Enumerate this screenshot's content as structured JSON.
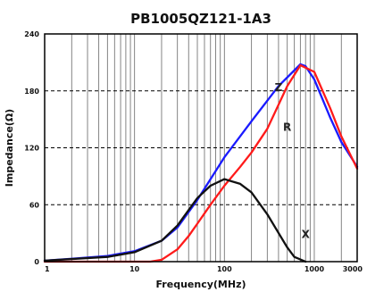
{
  "chart_data": {
    "type": "line",
    "title": "PB1005QZ121-1A3",
    "xlabel": "Frequency(MHz)",
    "ylabel": "Impedance(Ω)",
    "x_scale": "log",
    "xlim": [
      1,
      3000
    ],
    "ylim": [
      0,
      240
    ],
    "x_ticks": [
      1,
      10,
      100,
      1000,
      3000
    ],
    "x_tick_labels": [
      "1",
      "10",
      "100",
      "1000",
      "3000"
    ],
    "y_ticks": [
      0,
      60,
      120,
      180,
      240
    ],
    "y_tick_labels": [
      "0",
      "60",
      "120",
      "180",
      "240"
    ],
    "grid": {
      "vertical": "log-minor solid",
      "horizontal": "dashed at 60, 120, 180"
    },
    "legend": "none (inline labels on curves)",
    "series": [
      {
        "name": "Z",
        "color": "#1a1aff",
        "x": [
          1,
          2,
          5,
          10,
          20,
          30,
          50,
          100,
          200,
          400,
          700,
          800,
          1000,
          1500,
          2000,
          3000
        ],
        "y": [
          1,
          3,
          6,
          11,
          22,
          36,
          65,
          110,
          148,
          185,
          208,
          206,
          192,
          152,
          126,
          100
        ]
      },
      {
        "name": "R",
        "color": "#ff1a1a",
        "x": [
          1,
          5,
          10,
          15,
          20,
          30,
          40,
          50,
          70,
          100,
          150,
          200,
          300,
          500,
          700,
          1000,
          1500,
          2000,
          3000
        ],
        "y": [
          0,
          0,
          0,
          0,
          2,
          13,
          27,
          40,
          60,
          80,
          100,
          115,
          140,
          185,
          207,
          200,
          162,
          132,
          98
        ]
      },
      {
        "name": "X",
        "color": "#111111",
        "x": [
          1,
          5,
          10,
          20,
          30,
          50,
          70,
          100,
          150,
          200,
          300,
          500,
          600,
          800
        ],
        "y": [
          1,
          5,
          10,
          22,
          38,
          67,
          80,
          87,
          82,
          73,
          50,
          15,
          5,
          0
        ]
      }
    ],
    "curve_labels": [
      {
        "text": "Z",
        "x": 400,
        "y": 180
      },
      {
        "text": "R",
        "x": 500,
        "y": 138
      },
      {
        "text": "X",
        "x": 800,
        "y": 25
      }
    ]
  }
}
